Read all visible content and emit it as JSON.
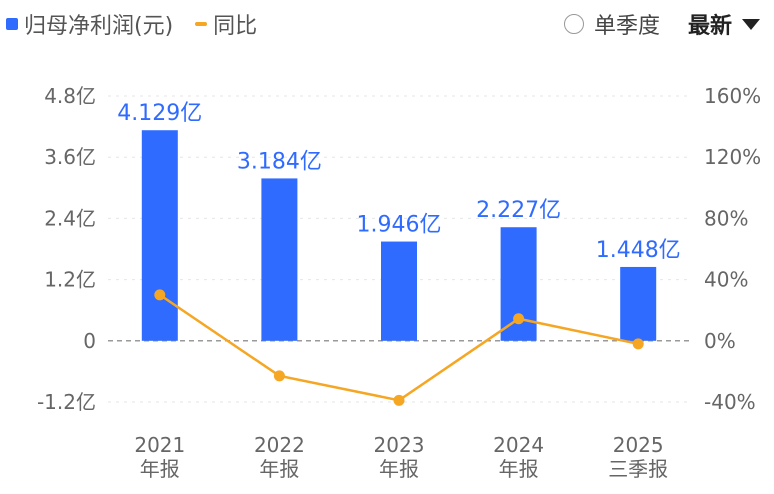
{
  "legend": {
    "bar_label": "归母净利润(元)",
    "line_label": "同比",
    "bar_color": "#2f6bff",
    "line_color": "#f5a623"
  },
  "controls": {
    "radio_label": "单季度",
    "radio_checked": false,
    "sort_label": "最新"
  },
  "chart_data": {
    "type": "bar",
    "categories": [
      [
        "2021",
        "年报"
      ],
      [
        "2022",
        "年报"
      ],
      [
        "2023",
        "年报"
      ],
      [
        "2024",
        "年报"
      ],
      [
        "2025",
        "三季报"
      ]
    ],
    "series": [
      {
        "name": "归母净利润(元)",
        "type": "bar",
        "axis": "left",
        "values": [
          4.129,
          3.184,
          1.946,
          2.227,
          1.448
        ],
        "labels": [
          "4.129亿",
          "3.184亿",
          "1.946亿",
          "2.227亿",
          "1.448亿"
        ]
      },
      {
        "name": "同比",
        "type": "line",
        "axis": "right",
        "values": [
          30.0,
          -22.9,
          -38.9,
          14.4,
          -2.0
        ]
      }
    ],
    "y_left": {
      "unit": "亿",
      "ylim": [
        -1.2,
        4.8
      ],
      "ticks": [
        4.8,
        3.6,
        2.4,
        1.2,
        0,
        -1.2
      ],
      "tick_labels": [
        "4.8亿",
        "3.6亿",
        "2.4亿",
        "1.2亿",
        "0",
        "-1.2亿"
      ]
    },
    "y_right": {
      "unit": "%",
      "ylim": [
        -40,
        160
      ],
      "ticks": [
        160,
        120,
        80,
        40,
        0,
        -40
      ],
      "tick_labels": [
        "160%",
        "120%",
        "80%",
        "40%",
        "0%",
        "-40%"
      ]
    },
    "grid": true,
    "zero_line": "dashed"
  }
}
